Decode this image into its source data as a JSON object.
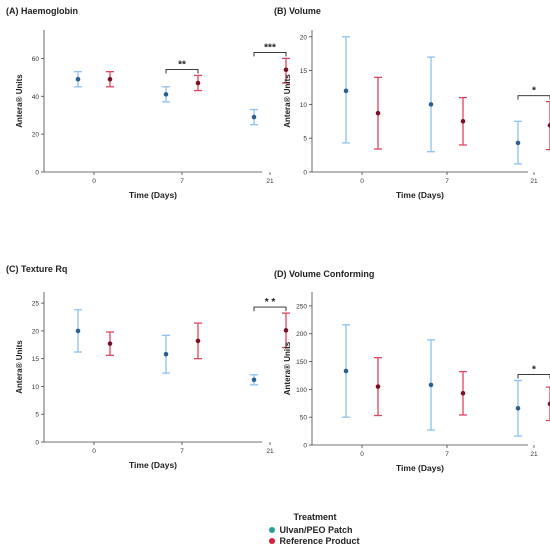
{
  "chart_data": [
    {
      "type": "error_bar",
      "title": "(A) Haemoglobin",
      "xlabel": "Time (Days)",
      "ylabel": "Antera® Units",
      "categories": [
        "0",
        "7",
        "21"
      ],
      "ylim": [
        0,
        75
      ],
      "yticks": [
        0,
        20,
        40,
        60
      ],
      "series": [
        {
          "name": "Ulvan/PEO Patch",
          "mean": [
            49,
            41,
            29
          ],
          "lower": [
            45,
            37,
            25
          ],
          "upper": [
            53,
            45,
            33
          ]
        },
        {
          "name": "Reference Product",
          "mean": [
            49,
            47,
            54
          ],
          "lower": [
            45,
            43,
            47
          ],
          "upper": [
            53,
            51,
            60
          ]
        }
      ],
      "annotations": [
        {
          "text": "**",
          "category": "7"
        },
        {
          "text": "***",
          "category": "21"
        }
      ]
    },
    {
      "type": "error_bar",
      "title": "(B) Volume",
      "xlabel": "Time (Days)",
      "ylabel": "Antera® Units",
      "categories": [
        "0",
        "7",
        "21"
      ],
      "ylim": [
        0,
        21
      ],
      "yticks": [
        0,
        5,
        10,
        15,
        20
      ],
      "series": [
        {
          "name": "Ulvan/PEO Patch",
          "mean": [
            12,
            10,
            4.3
          ],
          "lower": [
            4.3,
            3,
            1.2
          ],
          "upper": [
            20,
            17,
            7.5
          ]
        },
        {
          "name": "Reference Product",
          "mean": [
            8.7,
            7.5,
            6.9
          ],
          "lower": [
            3.4,
            4,
            3.3
          ],
          "upper": [
            14,
            11,
            10.4
          ]
        }
      ],
      "annotations": [
        {
          "text": "*",
          "category": "21"
        }
      ]
    },
    {
      "type": "error_bar",
      "title": "(C) Texture Rq",
      "xlabel": "Time (Days)",
      "ylabel": "Antera® Units",
      "categories": [
        "0",
        "7",
        "21"
      ],
      "ylim": [
        0,
        27
      ],
      "yticks": [
        0,
        5,
        10,
        15,
        20,
        25
      ],
      "series": [
        {
          "name": "Ulvan/PEO Patch",
          "mean": [
            20,
            15.8,
            11.2
          ],
          "lower": [
            16.2,
            12.4,
            10.3
          ],
          "upper": [
            23.8,
            19.2,
            12.1
          ]
        },
        {
          "name": "Reference Product",
          "mean": [
            17.7,
            18.2,
            20.1
          ],
          "lower": [
            15.6,
            15,
            17
          ],
          "upper": [
            19.8,
            21.4,
            23.2
          ]
        }
      ],
      "annotations": [
        {
          "text": "* *",
          "category": "21"
        }
      ]
    },
    {
      "type": "error_bar",
      "title": "(D) Volume Conforming",
      "xlabel": "Time (Days)",
      "ylabel": "Antera® Units",
      "categories": [
        "0",
        "7",
        "21"
      ],
      "ylim": [
        0,
        275
      ],
      "yticks": [
        0,
        50,
        100,
        150,
        200,
        250
      ],
      "series": [
        {
          "name": "Ulvan/PEO Patch",
          "mean": [
            133,
            108,
            66
          ],
          "lower": [
            50,
            27,
            16
          ],
          "upper": [
            216,
            189,
            116
          ]
        },
        {
          "name": "Reference Product",
          "mean": [
            105,
            93,
            74
          ],
          "lower": [
            53,
            54,
            44
          ],
          "upper": [
            157,
            132,
            104
          ]
        }
      ],
      "annotations": [
        {
          "text": "*",
          "category": "21"
        }
      ]
    }
  ],
  "legend": {
    "title": "Treatment",
    "items": [
      {
        "label": "Ulvan/PEO Patch",
        "color": "#2a9d9d"
      },
      {
        "label": "Reference Product",
        "color": "#d81e3c"
      }
    ]
  },
  "colors": {
    "series_bars": [
      "#8fc1ef",
      "#e0455f"
    ],
    "series_points": [
      "#2b5f8e",
      "#7a1024"
    ]
  }
}
